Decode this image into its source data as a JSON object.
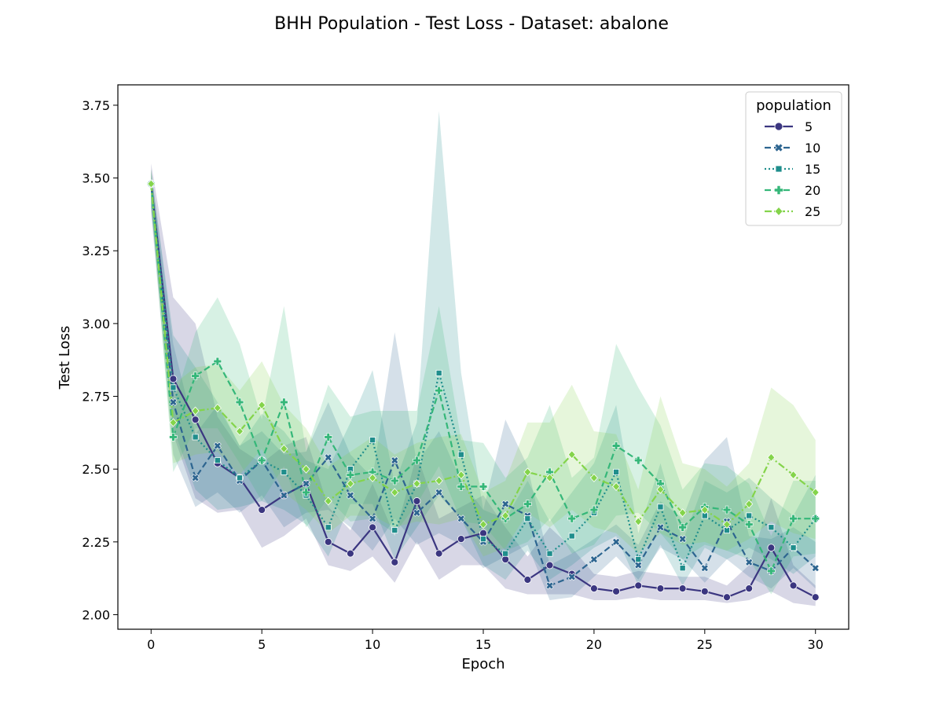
{
  "chart_data": {
    "type": "line",
    "title": "BHH Population - Test Loss - Dataset: abalone",
    "xlabel": "Epoch",
    "ylabel": "Test Loss",
    "xlim": [
      -1.5,
      31.5
    ],
    "ylim": [
      1.95,
      3.82
    ],
    "xticks": [
      0,
      5,
      10,
      15,
      20,
      25,
      30
    ],
    "xtick_labels": [
      "0",
      "5",
      "10",
      "15",
      "20",
      "25",
      "30"
    ],
    "yticks": [
      2.0,
      2.25,
      2.5,
      2.75,
      3.0,
      3.25,
      3.5,
      3.75
    ],
    "ytick_labels": [
      "2.00",
      "2.25",
      "2.50",
      "2.75",
      "3.00",
      "3.25",
      "3.50",
      "3.75"
    ],
    "grid": false,
    "legend": {
      "title": "population",
      "placement": "top-right"
    },
    "x": [
      0,
      1,
      2,
      3,
      4,
      5,
      6,
      7,
      8,
      9,
      10,
      11,
      12,
      13,
      14,
      15,
      16,
      17,
      18,
      19,
      20,
      21,
      22,
      23,
      24,
      25,
      26,
      27,
      28,
      29,
      30
    ],
    "series": [
      {
        "name": "5",
        "color": "#3b3680",
        "dash": "solid",
        "marker": "circle",
        "values": [
          3.48,
          2.81,
          2.67,
          2.52,
          2.47,
          2.36,
          2.41,
          2.45,
          2.25,
          2.21,
          2.3,
          2.18,
          2.39,
          2.21,
          2.26,
          2.28,
          2.19,
          2.12,
          2.17,
          2.14,
          2.09,
          2.08,
          2.1,
          2.09,
          2.09,
          2.08,
          2.06,
          2.09,
          2.23,
          2.1,
          2.06
        ],
        "lower": [
          3.4,
          2.62,
          2.4,
          2.35,
          2.36,
          2.23,
          2.27,
          2.33,
          2.17,
          2.15,
          2.2,
          2.11,
          2.25,
          2.12,
          2.17,
          2.17,
          2.09,
          2.07,
          2.07,
          2.07,
          2.05,
          2.05,
          2.06,
          2.05,
          2.05,
          2.05,
          2.04,
          2.05,
          2.08,
          2.04,
          2.03
        ],
        "upper": [
          3.55,
          3.09,
          3.0,
          2.68,
          2.57,
          2.52,
          2.58,
          2.61,
          2.37,
          2.29,
          2.45,
          2.27,
          2.55,
          2.33,
          2.37,
          2.41,
          2.3,
          2.2,
          2.3,
          2.23,
          2.14,
          2.13,
          2.15,
          2.14,
          2.13,
          2.13,
          2.1,
          2.17,
          2.4,
          2.17,
          2.1
        ]
      },
      {
        "name": "10",
        "color": "#2d6590",
        "dash": "dashed",
        "marker": "x",
        "values": [
          3.48,
          2.73,
          2.47,
          2.58,
          2.46,
          2.53,
          2.41,
          2.45,
          2.54,
          2.41,
          2.33,
          2.53,
          2.35,
          2.42,
          2.33,
          2.25,
          2.38,
          2.34,
          2.1,
          2.13,
          2.19,
          2.25,
          2.17,
          2.3,
          2.26,
          2.16,
          2.32,
          2.18,
          2.15,
          2.23,
          2.16
        ],
        "lower": [
          3.38,
          2.55,
          2.37,
          2.42,
          2.35,
          2.41,
          2.3,
          2.35,
          2.36,
          2.3,
          2.22,
          2.33,
          2.24,
          2.28,
          2.24,
          2.16,
          2.2,
          2.24,
          2.05,
          2.06,
          2.13,
          2.2,
          2.12,
          2.23,
          2.19,
          2.11,
          2.19,
          2.13,
          2.09,
          2.16,
          2.09
        ],
        "upper": [
          3.53,
          2.93,
          2.62,
          2.72,
          2.58,
          2.63,
          2.55,
          2.56,
          2.73,
          2.55,
          2.47,
          2.97,
          2.52,
          2.63,
          2.46,
          2.36,
          2.67,
          2.51,
          2.17,
          2.21,
          2.26,
          2.31,
          2.24,
          2.39,
          2.33,
          2.53,
          2.61,
          2.27,
          2.26,
          2.3,
          2.25
        ]
      },
      {
        "name": "15",
        "color": "#1f8e8c",
        "dash": "dotted",
        "marker": "square",
        "values": [
          3.48,
          2.78,
          2.61,
          2.53,
          2.47,
          2.53,
          2.49,
          2.41,
          2.3,
          2.5,
          2.6,
          2.29,
          2.45,
          2.83,
          2.55,
          2.26,
          2.21,
          2.33,
          2.21,
          2.27,
          2.35,
          2.49,
          2.19,
          2.37,
          2.16,
          2.34,
          2.29,
          2.34,
          2.3,
          2.23,
          2.33
        ],
        "lower": [
          3.4,
          2.64,
          2.43,
          2.36,
          2.37,
          2.39,
          2.36,
          2.31,
          2.2,
          2.38,
          2.38,
          2.19,
          2.3,
          2.41,
          2.33,
          2.17,
          2.12,
          2.22,
          2.12,
          2.17,
          2.23,
          2.27,
          2.1,
          2.24,
          2.1,
          2.23,
          2.19,
          2.23,
          2.19,
          2.14,
          2.2
        ],
        "upper": [
          3.52,
          2.96,
          2.85,
          2.73,
          2.58,
          2.69,
          2.63,
          2.53,
          2.5,
          2.66,
          2.84,
          2.45,
          2.66,
          3.73,
          2.83,
          2.36,
          2.33,
          2.46,
          2.32,
          2.42,
          2.52,
          2.72,
          2.28,
          2.52,
          2.25,
          2.46,
          2.42,
          2.47,
          2.4,
          2.34,
          2.48
        ]
      },
      {
        "name": "20",
        "color": "#35b779",
        "dash": "dashed",
        "marker": "plus",
        "values": [
          3.48,
          2.61,
          2.82,
          2.87,
          2.73,
          2.53,
          2.73,
          2.42,
          2.61,
          2.48,
          2.49,
          2.46,
          2.53,
          2.77,
          2.44,
          2.44,
          2.33,
          2.38,
          2.49,
          2.33,
          2.36,
          2.58,
          2.53,
          2.45,
          2.3,
          2.37,
          2.36,
          2.31,
          2.15,
          2.33,
          2.33
        ],
        "lower": [
          3.42,
          2.49,
          2.64,
          2.64,
          2.52,
          2.39,
          2.51,
          2.3,
          2.4,
          2.32,
          2.33,
          2.28,
          2.38,
          2.51,
          2.32,
          2.31,
          2.22,
          2.25,
          2.33,
          2.21,
          2.24,
          2.34,
          2.35,
          2.28,
          2.19,
          2.24,
          2.22,
          2.19,
          2.07,
          2.2,
          2.21
        ],
        "upper": [
          3.53,
          2.72,
          2.97,
          3.09,
          2.93,
          2.67,
          3.06,
          2.56,
          2.79,
          2.68,
          2.7,
          2.7,
          2.7,
          3.06,
          2.6,
          2.59,
          2.47,
          2.54,
          2.72,
          2.47,
          2.54,
          2.93,
          2.78,
          2.65,
          2.43,
          2.52,
          2.51,
          2.45,
          2.27,
          2.46,
          2.46
        ]
      },
      {
        "name": "25",
        "color": "#84d44b",
        "dash": "dashdot",
        "marker": "diamond",
        "values": [
          3.48,
          2.66,
          2.7,
          2.71,
          2.63,
          2.72,
          2.57,
          2.5,
          2.39,
          2.45,
          2.47,
          2.42,
          2.45,
          2.46,
          2.48,
          2.31,
          2.34,
          2.49,
          2.47,
          2.55,
          2.47,
          2.44,
          2.32,
          2.43,
          2.35,
          2.36,
          2.31,
          2.38,
          2.54,
          2.48,
          2.42
        ],
        "lower": [
          3.42,
          2.52,
          2.55,
          2.56,
          2.48,
          2.57,
          2.42,
          2.36,
          2.28,
          2.34,
          2.34,
          2.3,
          2.32,
          2.31,
          2.33,
          2.2,
          2.23,
          2.35,
          2.3,
          2.36,
          2.3,
          2.28,
          2.21,
          2.28,
          2.24,
          2.25,
          2.22,
          2.26,
          2.32,
          2.28,
          2.26
        ],
        "upper": [
          3.53,
          2.79,
          2.85,
          2.86,
          2.77,
          2.87,
          2.72,
          2.64,
          2.51,
          2.56,
          2.61,
          2.55,
          2.59,
          2.61,
          2.62,
          2.42,
          2.46,
          2.66,
          2.66,
          2.79,
          2.63,
          2.62,
          2.43,
          2.75,
          2.52,
          2.5,
          2.44,
          2.52,
          2.78,
          2.72,
          2.6
        ]
      }
    ]
  }
}
